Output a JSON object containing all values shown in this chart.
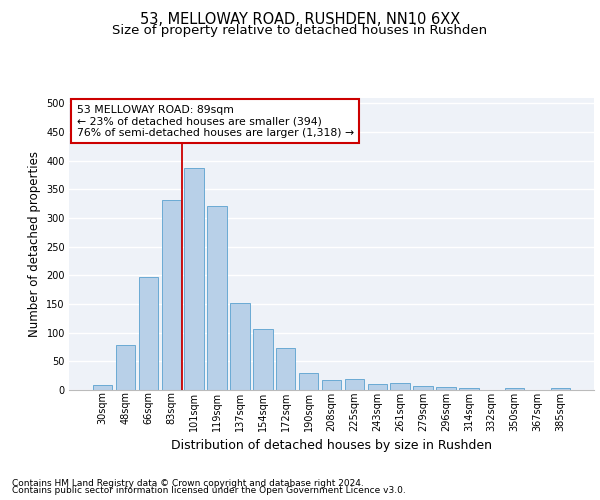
{
  "title_line1": "53, MELLOWAY ROAD, RUSHDEN, NN10 6XX",
  "title_line2": "Size of property relative to detached houses in Rushden",
  "xlabel": "Distribution of detached houses by size in Rushden",
  "ylabel": "Number of detached properties",
  "footer_line1": "Contains HM Land Registry data © Crown copyright and database right 2024.",
  "footer_line2": "Contains public sector information licensed under the Open Government Licence v3.0.",
  "categories": [
    "30sqm",
    "48sqm",
    "66sqm",
    "83sqm",
    "101sqm",
    "119sqm",
    "137sqm",
    "154sqm",
    "172sqm",
    "190sqm",
    "208sqm",
    "225sqm",
    "243sqm",
    "261sqm",
    "279sqm",
    "296sqm",
    "314sqm",
    "332sqm",
    "350sqm",
    "367sqm",
    "385sqm"
  ],
  "values": [
    8,
    78,
    197,
    331,
    387,
    320,
    151,
    107,
    73,
    30,
    17,
    20,
    10,
    12,
    7,
    5,
    3,
    0,
    3,
    0,
    3
  ],
  "bar_color": "#b8d0e8",
  "bar_edge_color": "#6aaad4",
  "annotation_box_text": "53 MELLOWAY ROAD: 89sqm\n← 23% of detached houses are smaller (394)\n76% of semi-detached houses are larger (1,318) →",
  "annotation_box_color": "#ffffff",
  "annotation_box_edge_color": "#cc0000",
  "vline_color": "#cc0000",
  "vline_x_index": 3.47,
  "ylim": [
    0,
    510
  ],
  "yticks": [
    0,
    50,
    100,
    150,
    200,
    250,
    300,
    350,
    400,
    450,
    500
  ],
  "background_color": "#eef2f8",
  "grid_color": "#ffffff",
  "title_fontsize": 10.5,
  "subtitle_fontsize": 9.5,
  "tick_fontsize": 7,
  "ylabel_fontsize": 8.5,
  "xlabel_fontsize": 9,
  "annotation_fontsize": 7.8,
  "footer_fontsize": 6.5
}
